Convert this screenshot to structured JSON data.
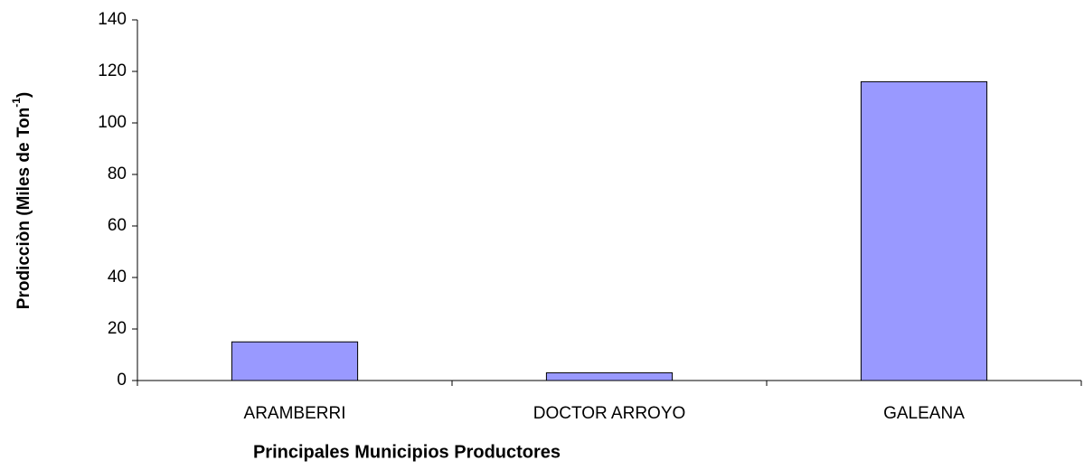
{
  "chart_data": {
    "type": "bar",
    "y_label": [
      "Prodicciòn (Miles de Ton",
      "-1",
      ")"
    ],
    "x_label": "Principales Municipios Productores",
    "categories": [
      "ARAMBERRI",
      "DOCTOR ARROYO",
      "GALEANA"
    ],
    "values": [
      15,
      3,
      116
    ],
    "color": "#9999ff",
    "ylim": [
      0,
      140
    ],
    "yticks": [
      0,
      20,
      40,
      60,
      80,
      100,
      120,
      140
    ],
    "grid": false
  }
}
